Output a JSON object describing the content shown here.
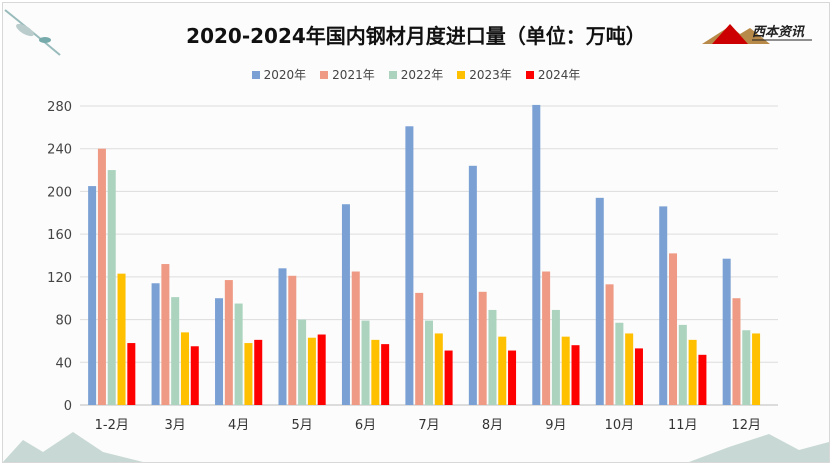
{
  "chart_data": {
    "type": "bar",
    "title": "2020-2024年国内钢材月度进口量（单位：万吨）",
    "categories": [
      "1-2月",
      "3月",
      "4月",
      "5月",
      "6月",
      "7月",
      "8月",
      "9月",
      "10月",
      "11月",
      "12月"
    ],
    "series": [
      {
        "name": "2020年",
        "color": "#7aa0d4",
        "values": [
          205,
          114,
          100,
          128,
          188,
          261,
          224,
          281,
          194,
          186,
          137
        ]
      },
      {
        "name": "2021年",
        "color": "#ef9a84",
        "values": [
          240,
          132,
          117,
          121,
          125,
          105,
          106,
          125,
          113,
          142,
          100
        ]
      },
      {
        "name": "2022年",
        "color": "#abd3be",
        "values": [
          220,
          101,
          95,
          80,
          79,
          79,
          89,
          89,
          77,
          75,
          70
        ]
      },
      {
        "name": "2023年",
        "color": "#ffc000",
        "values": [
          123,
          68,
          58,
          63,
          61,
          67,
          64,
          64,
          67,
          61,
          67
        ]
      },
      {
        "name": "2024年",
        "color": "#ff0000",
        "values": [
          58,
          55,
          61,
          66,
          57,
          51,
          51,
          56,
          53,
          47,
          null
        ]
      }
    ],
    "yticks": [
      0,
      40,
      80,
      120,
      160,
      200,
      240,
      280
    ],
    "ylim": [
      0,
      280
    ],
    "grid": true,
    "legend": "top"
  },
  "logo": {
    "text": "西本资讯",
    "subtext": "XIBEN INFORMATION"
  }
}
